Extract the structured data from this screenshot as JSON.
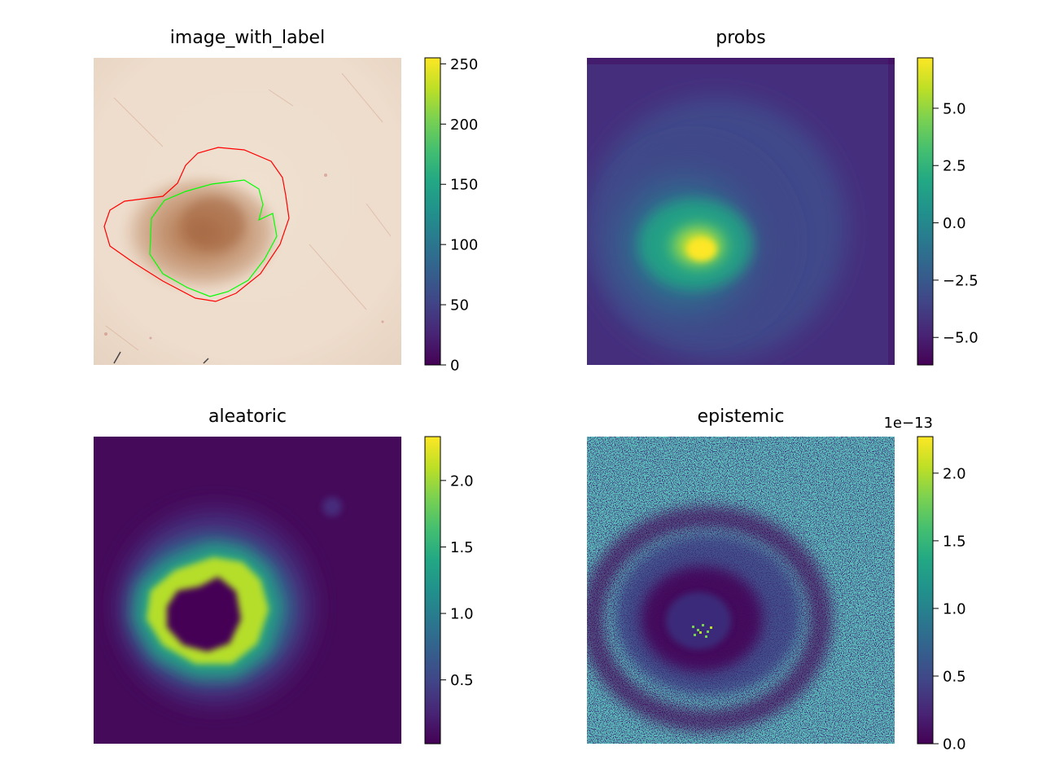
{
  "chart_data": [
    {
      "type": "heatmap",
      "title": "image_with_label",
      "content": "dermoscopy image with lesion contours",
      "grid": false,
      "axes_visible": false,
      "colormap": "viridis",
      "contour_colors": {
        "ground_truth": "#00ff00",
        "prediction": "#ff0000"
      },
      "colorbar": {
        "range": [
          0,
          255
        ],
        "ticks": [
          0,
          50,
          100,
          150,
          200,
          250
        ],
        "tick_labels": [
          "0",
          "50",
          "100",
          "150",
          "200",
          "250"
        ],
        "multiplier": ""
      }
    },
    {
      "type": "heatmap",
      "title": "probs",
      "grid": false,
      "axes_visible": false,
      "colormap": "viridis",
      "colorbar": {
        "range": [
          -6.2,
          7.2
        ],
        "ticks": [
          -5.0,
          -2.5,
          0.0,
          2.5,
          5.0
        ],
        "tick_labels": [
          "−5.0",
          "−2.5",
          "0.0",
          "2.5",
          "5.0"
        ],
        "multiplier": ""
      }
    },
    {
      "type": "heatmap",
      "title": "aleatoric",
      "grid": false,
      "axes_visible": false,
      "colormap": "viridis",
      "colorbar": {
        "range": [
          0.02,
          2.33
        ],
        "ticks": [
          0.5,
          1.0,
          1.5,
          2.0
        ],
        "tick_labels": [
          "0.5",
          "1.0",
          "1.5",
          "2.0"
        ],
        "multiplier": ""
      }
    },
    {
      "type": "heatmap",
      "title": "epistemic",
      "grid": false,
      "axes_visible": false,
      "colormap": "viridis",
      "colorbar": {
        "range": [
          0.0,
          2.27
        ],
        "ticks": [
          0.0,
          0.5,
          1.0,
          1.5,
          2.0
        ],
        "tick_labels": [
          "0.0",
          "0.5",
          "1.0",
          "1.5",
          "2.0"
        ],
        "multiplier": "1e−13"
      }
    }
  ]
}
